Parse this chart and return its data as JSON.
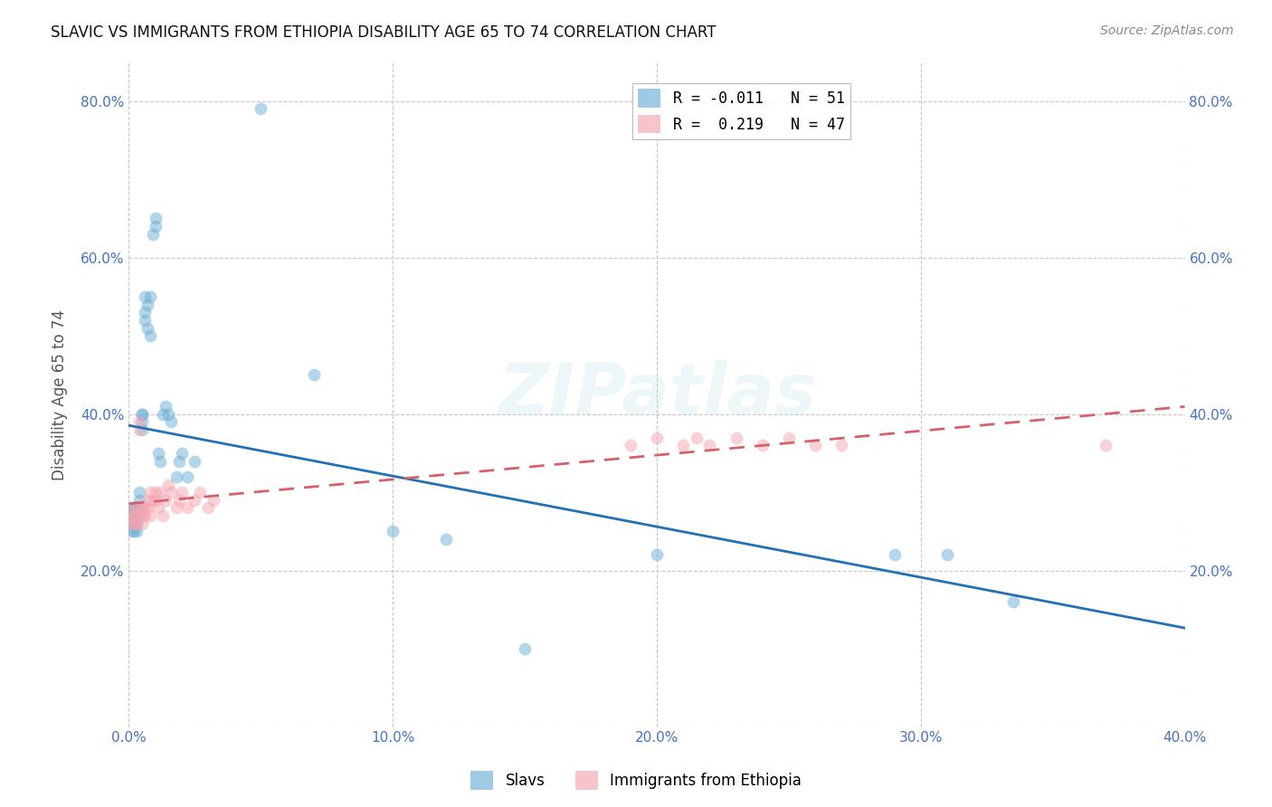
{
  "title": "SLAVIC VS IMMIGRANTS FROM ETHIOPIA DISABILITY AGE 65 TO 74 CORRELATION CHART",
  "source": "Source: ZipAtlas.com",
  "ylabel": "Disability Age 65 to 74",
  "xlim": [
    0.0,
    0.4
  ],
  "ylim": [
    0.0,
    0.85
  ],
  "x_ticks": [
    0.0,
    0.1,
    0.2,
    0.3,
    0.4
  ],
  "y_ticks": [
    0.0,
    0.2,
    0.4,
    0.6,
    0.8
  ],
  "slavs_color": "#6baed6",
  "ethiopia_color": "#f4a5b0",
  "slavs_line_color": "#2171b5",
  "ethiopia_line_color": "#d6616b",
  "background_color": "#ffffff",
  "grid_color": "#c8c8c8",
  "slavs_R": -0.011,
  "slavs_N": 51,
  "ethiopia_R": 0.219,
  "ethiopia_N": 47,
  "slavs_x": [
    0.001,
    0.001,
    0.001,
    0.001,
    0.002,
    0.002,
    0.002,
    0.002,
    0.003,
    0.003,
    0.003,
    0.003,
    0.003,
    0.004,
    0.004,
    0.004,
    0.004,
    0.005,
    0.005,
    0.005,
    0.005,
    0.006,
    0.006,
    0.006,
    0.007,
    0.007,
    0.008,
    0.008,
    0.009,
    0.01,
    0.01,
    0.011,
    0.012,
    0.013,
    0.014,
    0.015,
    0.016,
    0.018,
    0.019,
    0.02,
    0.022,
    0.025,
    0.2,
    0.29,
    0.31,
    0.335,
    0.05,
    0.07,
    0.1,
    0.12,
    0.15
  ],
  "slavs_y": [
    0.26,
    0.27,
    0.28,
    0.25,
    0.27,
    0.28,
    0.26,
    0.25,
    0.28,
    0.27,
    0.26,
    0.25,
    0.28,
    0.3,
    0.29,
    0.28,
    0.27,
    0.4,
    0.39,
    0.38,
    0.4,
    0.55,
    0.53,
    0.52,
    0.54,
    0.51,
    0.5,
    0.55,
    0.63,
    0.64,
    0.65,
    0.35,
    0.34,
    0.4,
    0.41,
    0.4,
    0.39,
    0.32,
    0.34,
    0.35,
    0.32,
    0.34,
    0.22,
    0.22,
    0.22,
    0.16,
    0.79,
    0.45,
    0.25,
    0.24,
    0.1
  ],
  "ethiopia_x": [
    0.001,
    0.001,
    0.002,
    0.002,
    0.002,
    0.003,
    0.003,
    0.003,
    0.004,
    0.004,
    0.005,
    0.005,
    0.005,
    0.006,
    0.006,
    0.007,
    0.007,
    0.008,
    0.008,
    0.009,
    0.01,
    0.01,
    0.011,
    0.012,
    0.013,
    0.014,
    0.015,
    0.016,
    0.018,
    0.019,
    0.02,
    0.022,
    0.025,
    0.027,
    0.03,
    0.032,
    0.19,
    0.2,
    0.21,
    0.215,
    0.22,
    0.23,
    0.24,
    0.25,
    0.26,
    0.27,
    0.37
  ],
  "ethiopia_y": [
    0.27,
    0.26,
    0.28,
    0.26,
    0.27,
    0.26,
    0.27,
    0.28,
    0.39,
    0.38,
    0.28,
    0.27,
    0.26,
    0.28,
    0.27,
    0.28,
    0.29,
    0.3,
    0.27,
    0.29,
    0.3,
    0.29,
    0.28,
    0.3,
    0.27,
    0.29,
    0.31,
    0.3,
    0.28,
    0.29,
    0.3,
    0.28,
    0.29,
    0.3,
    0.28,
    0.29,
    0.36,
    0.37,
    0.36,
    0.37,
    0.36,
    0.37,
    0.36,
    0.37,
    0.36,
    0.36,
    0.36
  ]
}
